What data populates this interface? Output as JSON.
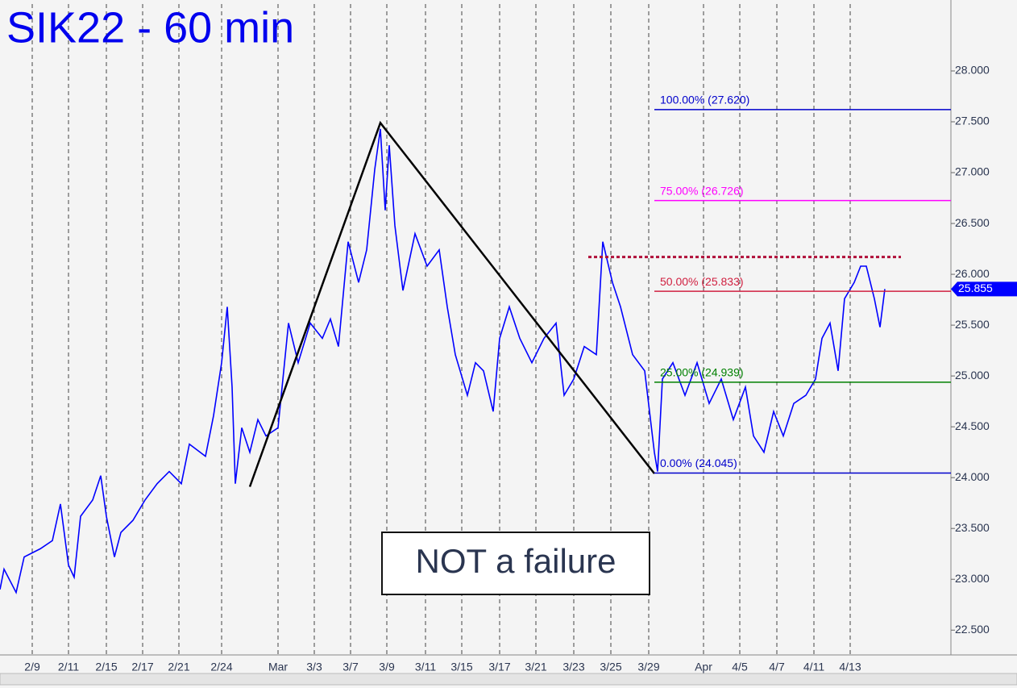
{
  "chart_data": {
    "type": "line",
    "title": "SIK22 - 60 min",
    "annotation": "NOT a failure",
    "xlim": [
      0,
      118
    ],
    "ylim": [
      22.256,
      28.698
    ],
    "xticks": [
      {
        "value": 4.0,
        "label": "2/9"
      },
      {
        "value": 8.5,
        "label": "2/11"
      },
      {
        "value": 13.2,
        "label": "2/15"
      },
      {
        "value": 17.7,
        "label": "2/17"
      },
      {
        "value": 22.2,
        "label": "2/21"
      },
      {
        "value": 27.5,
        "label": "2/24"
      },
      {
        "value": 34.5,
        "label": "Mar"
      },
      {
        "value": 39.0,
        "label": "3/3"
      },
      {
        "value": 43.5,
        "label": "3/7"
      },
      {
        "value": 48.0,
        "label": "3/9"
      },
      {
        "value": 52.8,
        "label": "3/11"
      },
      {
        "value": 57.3,
        "label": "3/15"
      },
      {
        "value": 62.0,
        "label": "3/17"
      },
      {
        "value": 66.5,
        "label": "3/21"
      },
      {
        "value": 71.2,
        "label": "3/23"
      },
      {
        "value": 75.8,
        "label": "3/25"
      },
      {
        "value": 80.5,
        "label": "3/29"
      },
      {
        "value": 87.3,
        "label": "Apr"
      },
      {
        "value": 91.8,
        "label": "4/5"
      },
      {
        "value": 96.4,
        "label": "4/7"
      },
      {
        "value": 101.0,
        "label": "4/11"
      },
      {
        "value": 105.5,
        "label": "4/13"
      }
    ],
    "yticks": [
      {
        "value": 22.5,
        "label": "22.500"
      },
      {
        "value": 23,
        "label": "23.000"
      },
      {
        "value": 23.5,
        "label": "23.500"
      },
      {
        "value": 24,
        "label": "24.000"
      },
      {
        "value": 24.5,
        "label": "24.500"
      },
      {
        "value": 25,
        "label": "25.000"
      },
      {
        "value": 25.5,
        "label": "25.500"
      },
      {
        "value": 26,
        "label": "26.000"
      },
      {
        "value": 26.5,
        "label": "26.500"
      },
      {
        "value": 27,
        "label": "27.000"
      },
      {
        "value": 27.5,
        "label": "27.500"
      },
      {
        "value": 28,
        "label": "28.000"
      }
    ],
    "series": [
      {
        "name": "SIK22",
        "color": "#0000ff",
        "x": [
          0,
          0.5,
          2,
          3,
          5,
          6.5,
          7.5,
          8.5,
          9.2,
          10,
          11.5,
          12.5,
          13.2,
          14.2,
          15,
          16.5,
          18,
          19.5,
          21,
          22.5,
          23.5,
          25.5,
          26.5,
          27.5,
          28.2,
          28.8,
          29.2,
          30,
          31,
          32,
          33,
          34.5,
          35.8,
          37,
          38.5,
          40,
          41,
          42,
          43.2,
          44.5,
          45.5,
          46.5,
          47.2,
          47.8,
          48.3,
          49,
          50,
          51.5,
          53,
          54.5,
          55.5,
          56.5,
          58,
          59,
          60,
          61.2,
          62,
          63.2,
          64.5,
          66,
          67.5,
          69,
          70,
          71.2,
          72.5,
          74,
          74.8,
          76,
          77,
          78.5,
          80,
          81.2,
          81.6,
          82.2,
          83.5,
          85,
          86.5,
          88,
          89.5,
          91,
          92.5,
          93.5,
          94.8,
          96,
          97.2,
          98.5,
          100,
          101.2,
          102,
          103,
          104,
          104.8,
          106,
          106.8,
          107.5,
          108.5,
          109.2,
          109.8
        ],
        "values": [
          22.9,
          23.1,
          22.87,
          23.22,
          23.3,
          23.38,
          23.74,
          23.14,
          23.02,
          23.62,
          23.78,
          24.02,
          23.62,
          23.22,
          23.46,
          23.58,
          23.78,
          23.94,
          24.06,
          23.94,
          24.33,
          24.21,
          24.61,
          25.13,
          25.68,
          24.89,
          23.94,
          24.49,
          24.25,
          24.57,
          24.41,
          24.49,
          25.52,
          25.13,
          25.52,
          25.37,
          25.56,
          25.29,
          26.32,
          25.92,
          26.24,
          27.03,
          27.43,
          26.63,
          27.27,
          26.48,
          25.84,
          26.4,
          26.08,
          26.24,
          25.68,
          25.21,
          24.81,
          25.13,
          25.05,
          24.65,
          25.37,
          25.68,
          25.37,
          25.13,
          25.37,
          25.52,
          24.81,
          24.97,
          25.29,
          25.21,
          26.32,
          25.92,
          25.68,
          25.21,
          25.05,
          24.25,
          24.06,
          24.97,
          25.13,
          24.81,
          25.13,
          24.73,
          24.97,
          24.57,
          24.89,
          24.41,
          24.25,
          24.65,
          24.41,
          24.73,
          24.81,
          24.97,
          25.37,
          25.52,
          25.05,
          25.76,
          25.92,
          26.08,
          26.08,
          25.76,
          25.48,
          25.855
        ]
      }
    ],
    "trendline": {
      "x": [
        31,
        47.2,
        81.2
      ],
      "values": [
        23.91,
        27.49,
        24.04
      ]
    },
    "fib_levels": [
      {
        "label": "100.00% (27.620)",
        "value": 27.62,
        "color": "#0000cc"
      },
      {
        "label": "75.00% (26.726)",
        "value": 26.726,
        "color": "#ff00ff"
      },
      {
        "label": "50.00% (25.833)",
        "value": 25.833,
        "color": "#d02040"
      },
      {
        "label": "25.00% (24.939)",
        "value": 24.939,
        "color": "#008000"
      },
      {
        "label": "0.00% (24.045)",
        "value": 24.045,
        "color": "#0000cc"
      }
    ],
    "resistance": {
      "value": 26.17,
      "x": [
        73,
        111.8
      ],
      "color": "#b0103a"
    },
    "last_price": 25.855
  }
}
